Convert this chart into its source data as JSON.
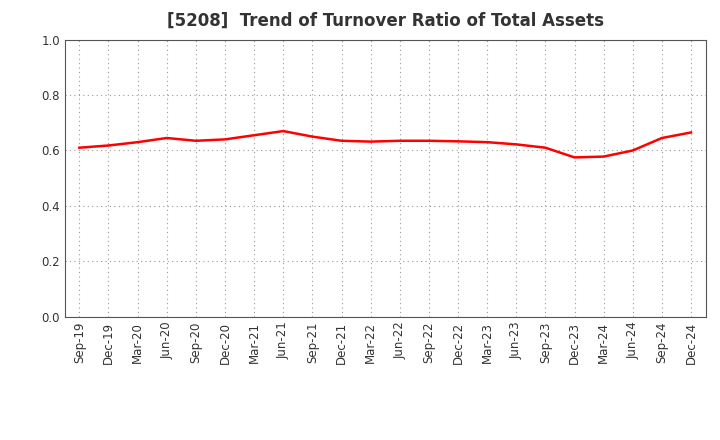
{
  "title": "[5208]  Trend of Turnover Ratio of Total Assets",
  "x_labels": [
    "Sep-19",
    "Dec-19",
    "Mar-20",
    "Jun-20",
    "Sep-20",
    "Dec-20",
    "Mar-21",
    "Jun-21",
    "Sep-21",
    "Dec-21",
    "Mar-22",
    "Jun-22",
    "Sep-22",
    "Dec-22",
    "Mar-23",
    "Jun-23",
    "Sep-23",
    "Dec-23",
    "Mar-24",
    "Jun-24",
    "Sep-24",
    "Dec-24"
  ],
  "y_values": [
    0.61,
    0.618,
    0.63,
    0.645,
    0.635,
    0.64,
    0.655,
    0.67,
    0.65,
    0.635,
    0.632,
    0.635,
    0.635,
    0.633,
    0.63,
    0.622,
    0.61,
    0.575,
    0.578,
    0.6,
    0.645,
    0.665
  ],
  "line_color": "#FF0000",
  "line_width": 1.8,
  "ylim": [
    0.0,
    1.0
  ],
  "yticks": [
    0.0,
    0.2,
    0.4,
    0.6,
    0.8,
    1.0
  ],
  "background_color": "#ffffff",
  "plot_background_color": "#ffffff",
  "grid_color": "#999999",
  "title_fontsize": 12,
  "title_color": "#333333",
  "tick_fontsize": 8.5,
  "tick_color": "#333333"
}
